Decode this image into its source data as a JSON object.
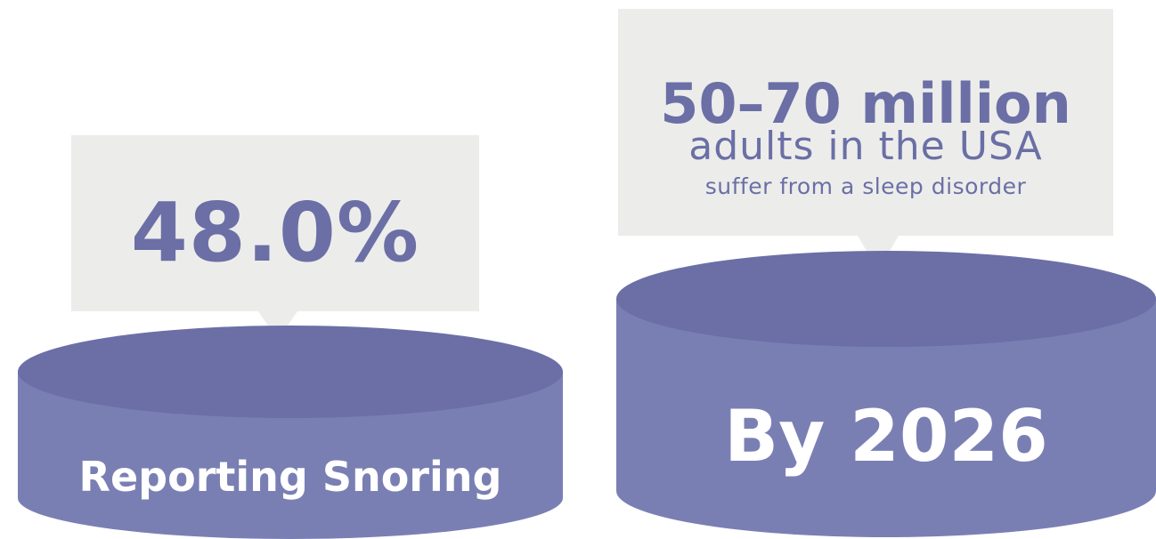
{
  "colors": {
    "callout_bg": "#ecedea",
    "accent": "#6b6fa6",
    "cylinder_top": "#6b6fa6",
    "cylinder_side": "#7a7fb3",
    "caption_text": "#ffffff"
  },
  "left_card": {
    "stat": "48.0%",
    "caption": "Reporting Snoring"
  },
  "right_card": {
    "stat": "50–70 million",
    "line2": "adults in the USA",
    "line3": "suffer from a sleep disorder",
    "caption": "By 2026"
  }
}
